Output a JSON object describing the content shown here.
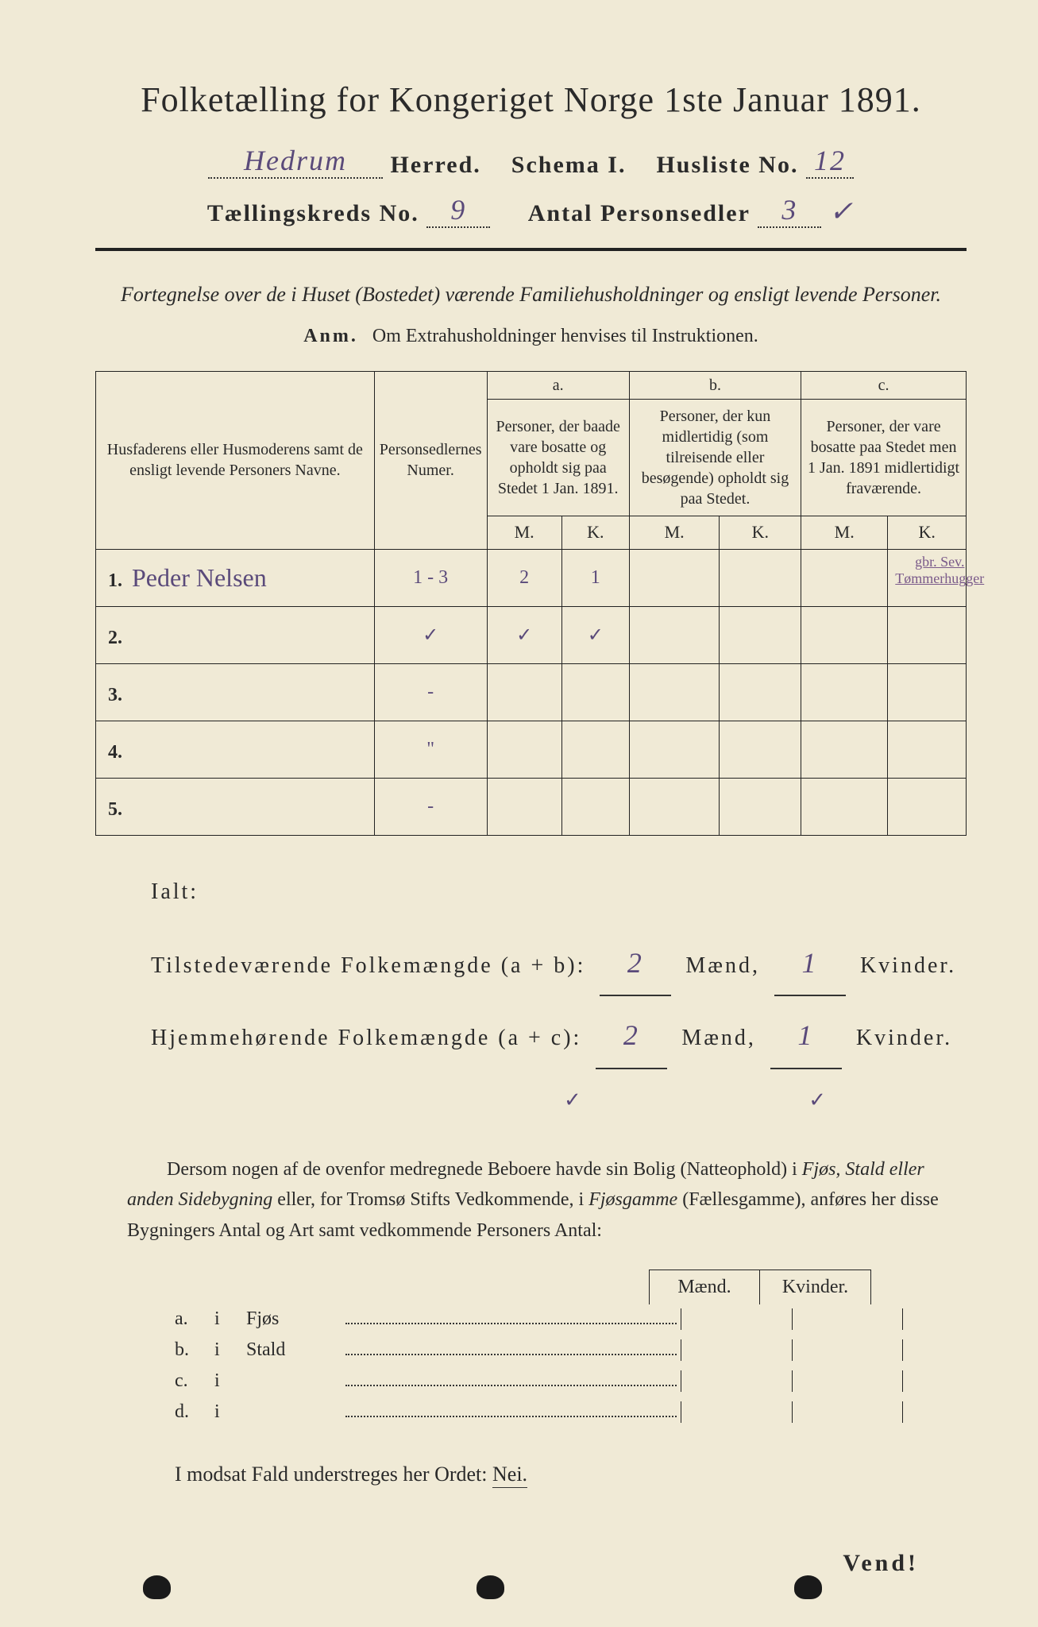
{
  "title": "Folketælling for Kongeriget Norge 1ste Januar 1891.",
  "header": {
    "herred_value": "Hedrum",
    "herred_label": "Herred.",
    "schema_label": "Schema I.",
    "husliste_label": "Husliste No.",
    "husliste_value": "12",
    "kreds_label": "Tællingskreds No.",
    "kreds_value": "9",
    "antal_label": "Antal Personsedler",
    "antal_value": "3"
  },
  "subtitle": "Fortegnelse over de i Huset (Bostedet) værende Familiehusholdninger og ensligt levende Personer.",
  "anm_label": "Anm.",
  "anm_text": "Om Extrahusholdninger henvises til Instruktionen.",
  "table": {
    "col1": "Husfaderens eller Husmoderens samt de ensligt levende Personers Navne.",
    "col2": "Personsedlernes Numer.",
    "col_a_letter": "a.",
    "col_a": "Personer, der baade vare bosatte og opholdt sig paa Stedet 1 Jan. 1891.",
    "col_b_letter": "b.",
    "col_b": "Personer, der kun midlertidig (som tilreisende eller besøgende) opholdt sig paa Stedet.",
    "col_c_letter": "c.",
    "col_c": "Personer, der vare bosatte paa Stedet men 1 Jan. 1891 midlertidigt fraværende.",
    "m": "M.",
    "k": "K.",
    "rows": [
      {
        "num": "1.",
        "name": "Peder Nelsen",
        "numer": "1 - 3",
        "am": "2",
        "ak": "1",
        "bm": "",
        "bk": "",
        "cm": "",
        "ck": "",
        "note": "gbr. Sev. Tømmerhugger"
      },
      {
        "num": "2.",
        "name": "",
        "numer": "✓",
        "am": "✓",
        "ak": "✓",
        "bm": "",
        "bk": "",
        "cm": "",
        "ck": "",
        "note": ""
      },
      {
        "num": "3.",
        "name": "",
        "numer": "-",
        "am": "",
        "ak": "",
        "bm": "",
        "bk": "",
        "cm": "",
        "ck": "",
        "note": ""
      },
      {
        "num": "4.",
        "name": "",
        "numer": "\"",
        "am": "",
        "ak": "",
        "bm": "",
        "bk": "",
        "cm": "",
        "ck": "",
        "note": ""
      },
      {
        "num": "5.",
        "name": "",
        "numer": "-",
        "am": "",
        "ak": "",
        "bm": "",
        "bk": "",
        "cm": "",
        "ck": "",
        "note": ""
      }
    ]
  },
  "ialt": {
    "label": "Ialt:",
    "line1_label": "Tilstedeværende Folkemængde (a + b):",
    "line2_label": "Hjemmehørende Folkemængde (a + c):",
    "maend": "Mænd,",
    "kvinder": "Kvinder.",
    "l1m": "2",
    "l1k": "1",
    "l2m": "2",
    "l2k": "1"
  },
  "paragraph": {
    "p1": "Dersom nogen af de ovenfor medregnede Beboere havde sin Bolig (Natteophold) i ",
    "p2": "Fjøs, Stald eller anden Sidebygning",
    "p3": " eller, for Tromsø Stifts Vedkommende, i ",
    "p4": "Fjøsgamme",
    "p5": " (Fællesgamme), anføres her disse Bygningers Antal og Art samt vedkommende Personers Antal:"
  },
  "subtable": {
    "maend": "Mænd.",
    "kvinder": "Kvinder.",
    "rows": [
      {
        "letter": "a.",
        "i": "i",
        "name": "Fjøs"
      },
      {
        "letter": "b.",
        "i": "i",
        "name": "Stald"
      },
      {
        "letter": "c.",
        "i": "i",
        "name": ""
      },
      {
        "letter": "d.",
        "i": "i",
        "name": ""
      }
    ]
  },
  "modsat": {
    "text": "I modsat Fald understreges her Ordet: ",
    "nei": "Nei."
  },
  "vend": "Vend!"
}
